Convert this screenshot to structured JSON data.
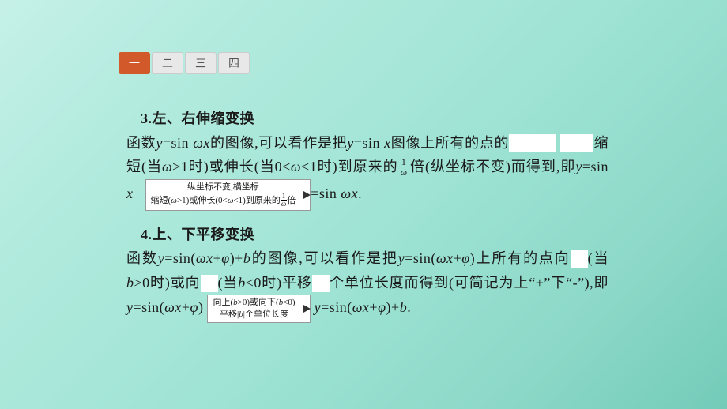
{
  "tabs": {
    "items": [
      "一",
      "二",
      "三",
      "四"
    ],
    "activeIndex": 0
  },
  "section3": {
    "heading_num": "3",
    "heading_dot": ".",
    "heading_text": "左、右伸缩变换",
    "l1a": "函数",
    "l1b": "=sin ",
    "l1c": "的图像,可以看作是把",
    "l1d": "=sin ",
    "l1e": "图像上所有的点的",
    "l2a": "缩短(当",
    "l2b": ">1时)或伸长(当0<",
    "l2c": "<1时)到原来的",
    "l2d": "倍(纵坐标不变)而得到,即",
    "l2e": "=sin ",
    "l2f": "=sin ",
    "l2g": ".",
    "arrow_top": "纵坐标不变,横坐标",
    "arrow_bot_a": "缩短(",
    "arrow_bot_b": ">1)或伸长(0<",
    "arrow_bot_c": "<1)到原来的",
    "arrow_bot_d": "倍",
    "frac_inline_num": "1",
    "frac_inline_den": "ω",
    "tf_num": "1",
    "tf_den": "ω"
  },
  "section4": {
    "heading_num": "4",
    "heading_dot": ".",
    "heading_text": "上、下平移变换",
    "l1a": "函数",
    "l1b": "=sin(",
    "l1c": "+",
    "l1d": ")+",
    "l1e": "的图像,可以看作是把",
    "l1f": "=sin(",
    "l1g": "+",
    "l1h": ")上所有的点向",
    "l2a": "(当",
    "l2b": ">0时)或向",
    "l2c": "(当",
    "l2d": "<0时)平移",
    "l2e": "个单位长度而得到(可简记为上“+”下“-”),即",
    "l2f": "=sin(",
    "l2g": "+",
    "l2h": ")",
    "l2i": "=sin(",
    "l2j": "+",
    "l2k": ")+",
    "l2l": ".",
    "arrow_top_a": "向上(",
    "arrow_top_b": ">0)或向下(",
    "arrow_top_c": "<0)",
    "arrow_bot_a": "平移|",
    "arrow_bot_b": "|个单位长度"
  },
  "vars": {
    "y": "y",
    "x": "x",
    "omega": "ω",
    "phi": "φ",
    "b": "b",
    "omegax": "ωx"
  },
  "colors": {
    "tab_active_bg": "#d25a2a",
    "tab_active_fg": "#ffffff",
    "tab_bg": "#e8e8e8",
    "blank_bg": "#ffffff"
  }
}
